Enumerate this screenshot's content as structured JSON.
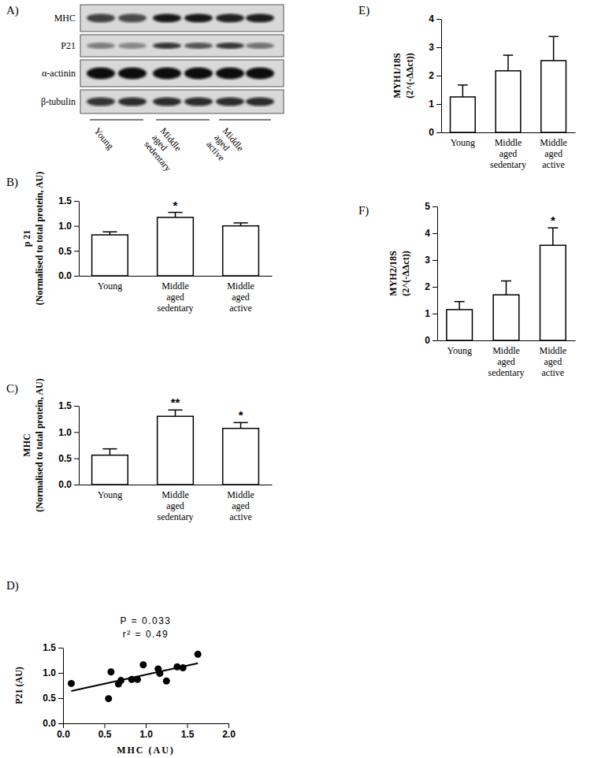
{
  "chart_data": [
    {
      "type": "blot",
      "title": "A)",
      "rows": [
        "MHC",
        "P21",
        "α-actinin",
        "β-tubulin"
      ],
      "groups": [
        "Young",
        "Middle aged sedentary",
        "Middle aged active"
      ]
    },
    {
      "type": "bar",
      "title": "B)",
      "y_label": [
        "p 21",
        "(Normalised to total protein, AU)"
      ],
      "categories": [
        "Young",
        "Middle aged sedentary",
        "Middle aged active"
      ],
      "values": [
        0.82,
        1.17,
        1.0
      ],
      "errors": [
        0.06,
        0.1,
        0.06
      ],
      "significance": [
        null,
        "*",
        null
      ],
      "color": "#ffffff",
      "ylim": [
        0,
        1.5
      ],
      "yticks": [
        {
          "value": 0,
          "label": "0.0"
        },
        0.5,
        {
          "value": 1,
          "label": "1.0"
        },
        1.5
      ]
    },
    {
      "type": "bar",
      "title": "C)",
      "y_label": [
        "MHC",
        "(Normalised to total protein, AU)"
      ],
      "categories": [
        "Young",
        "Middle aged sedentary",
        "Middle aged active"
      ],
      "values": [
        0.56,
        1.3,
        1.07
      ],
      "errors": [
        0.12,
        0.12,
        0.11
      ],
      "significance": [
        null,
        "**",
        "*"
      ],
      "color": "#ffffff",
      "ylim": [
        0,
        1.5
      ],
      "yticks": [
        {
          "value": 0,
          "label": "0.0"
        },
        0.5,
        {
          "value": 1,
          "label": "1.0"
        },
        1.5
      ]
    },
    {
      "type": "scatter",
      "title": "D)",
      "x_label": "MHC (AU)",
      "y_label": "P21 (AU)",
      "annotations": [
        "P = 0.033",
        "r² = 0.49"
      ],
      "x": [
        0.1,
        0.55,
        0.58,
        0.67,
        0.7,
        0.83,
        0.9,
        0.97,
        1.15,
        1.17,
        1.25,
        1.38,
        1.45,
        1.63
      ],
      "y": [
        0.79,
        0.49,
        1.02,
        0.78,
        0.85,
        0.87,
        0.87,
        1.16,
        1.08,
        0.99,
        0.84,
        1.12,
        1.1,
        1.37
      ],
      "fit_line": {
        "x": [
          0.1,
          1.63
        ],
        "y": [
          0.64,
          1.19
        ]
      },
      "color": "#000000",
      "marker": "circle",
      "xlim": [
        0,
        2
      ],
      "xticks": [
        {
          "value": 0,
          "label": "0.0"
        },
        0.5,
        {
          "value": 1,
          "label": "1.0"
        },
        1.5,
        {
          "value": 2,
          "label": "2.0"
        }
      ],
      "ylim": [
        0,
        1.5
      ],
      "yticks": [
        {
          "value": 0,
          "label": "0.0"
        },
        0.5,
        {
          "value": 1,
          "label": "1.0"
        },
        1.5
      ]
    },
    {
      "type": "bar",
      "title": "E)",
      "y_label": [
        "MYH1/18S",
        "(2^(-ΔΔct))"
      ],
      "categories": [
        "Young",
        "Middle aged sedentary",
        "Middle aged active"
      ],
      "values": [
        1.25,
        2.17,
        2.53
      ],
      "errors": [
        0.42,
        0.55,
        0.85
      ],
      "color": "#ffffff",
      "ylim": [
        0,
        4
      ],
      "yticks": [
        0,
        1,
        2,
        3,
        4
      ]
    },
    {
      "type": "bar",
      "title": "F)",
      "y_label": [
        "MYH2/18S",
        "(2^(-ΔΔct))"
      ],
      "categories": [
        "Young",
        "Middle aged sedentary",
        "Middle aged active"
      ],
      "values": [
        1.15,
        1.7,
        3.55
      ],
      "errors": [
        0.3,
        0.52,
        0.65
      ],
      "significance": [
        null,
        null,
        "*"
      ],
      "color": "#ffffff",
      "ylim": [
        0,
        5
      ],
      "yticks": [
        0,
        1,
        2,
        3,
        4,
        5
      ]
    }
  ]
}
